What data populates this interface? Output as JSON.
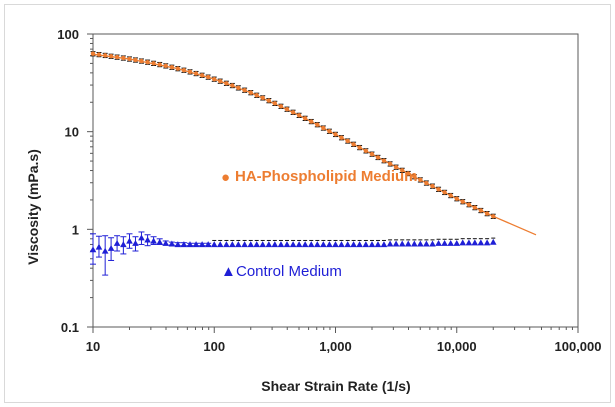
{
  "chart_data": {
    "type": "scatter",
    "xlabel": "Shear Strain Rate (1/s)",
    "ylabel": "Viscosity (mPa.s)",
    "x_scale": "log",
    "y_scale": "log",
    "xlim": [
      10,
      100000
    ],
    "ylim": [
      0.1,
      100
    ],
    "x_ticks": [
      "10",
      "100",
      "1,000",
      "10,000",
      "100,000"
    ],
    "y_ticks": [
      "100",
      "10",
      "1",
      "0.1"
    ],
    "grid": false,
    "colors": {
      "ha": "#ed7d31",
      "control": "#1f1fd6",
      "points": "#111111"
    },
    "series": [
      {
        "name": "HA-Phospholipid Medium",
        "marker": "circle",
        "color": "#ed7d31",
        "x": [
          10,
          11.2,
          12.6,
          14.1,
          15.8,
          17.8,
          20,
          22.4,
          25.1,
          28.2,
          31.6,
          35.5,
          39.8,
          44.7,
          50.1,
          56.2,
          63.1,
          70.8,
          79.4,
          89.1,
          100,
          112,
          126,
          141,
          158,
          178,
          200,
          224,
          251,
          282,
          316,
          355,
          398,
          447,
          501,
          562,
          631,
          708,
          794,
          891,
          1000,
          1120,
          1260,
          1410,
          1580,
          1780,
          2000,
          2240,
          2510,
          2820,
          3160,
          3550,
          3980,
          4470,
          5010,
          5620,
          6310,
          7080,
          7940,
          8910,
          10000,
          11200,
          12600,
          14100,
          15800,
          17800,
          20000
        ],
        "y": [
          62.8,
          61.6,
          60.4,
          59.2,
          58,
          56.8,
          55.5,
          54.2,
          52.9,
          51.5,
          50.1,
          48.7,
          47.2,
          45.7,
          44.2,
          42.6,
          41,
          39.4,
          37.8,
          36.2,
          34.5,
          32.9,
          31.3,
          29.7,
          28.1,
          26.6,
          25.1,
          23.6,
          22.2,
          20.8,
          19.5,
          18.2,
          17,
          15.8,
          14.7,
          13.7,
          12.7,
          11.8,
          10.9,
          10.1,
          9.38,
          8.68,
          8.03,
          7.43,
          6.88,
          6.37,
          5.89,
          5.45,
          5.05,
          4.68,
          4.33,
          4.02,
          3.73,
          3.46,
          3.21,
          2.98,
          2.77,
          2.57,
          2.39,
          2.22,
          2.06,
          1.92,
          1.79,
          1.67,
          1.56,
          1.45,
          1.36
        ],
        "error": 0.05,
        "fit": {
          "x": [
            10,
            20,
            50,
            100,
            200,
            500,
            1000,
            2000,
            5000,
            10000,
            20000,
            45000
          ],
          "y": [
            62,
            55.5,
            44.2,
            34.5,
            25.1,
            14.7,
            9.38,
            5.89,
            3.21,
            2.06,
            1.36,
            0.88
          ]
        }
      },
      {
        "name": "Control Medium",
        "marker": "triangle",
        "color": "#1f1fd6",
        "x": [
          10,
          11.2,
          12.6,
          14.1,
          15.8,
          17.8,
          20,
          22.4,
          25.1,
          28.2,
          31.6,
          35.5,
          39.8,
          44.7,
          50.1,
          56.2,
          63.1,
          70.8,
          79.4,
          89.1,
          100,
          112,
          126,
          141,
          158,
          178,
          200,
          224,
          251,
          282,
          316,
          355,
          398,
          447,
          501,
          562,
          631,
          708,
          794,
          891,
          1000,
          1120,
          1260,
          1410,
          1580,
          1780,
          2000,
          2240,
          2510,
          2820,
          3160,
          3550,
          3980,
          4470,
          5010,
          5620,
          6310,
          7080,
          7940,
          8910,
          10000,
          11200,
          12600,
          14100,
          15800,
          17800,
          20000
        ],
        "y": [
          0.62,
          0.66,
          0.6,
          0.64,
          0.72,
          0.7,
          0.76,
          0.72,
          0.82,
          0.78,
          0.76,
          0.74,
          0.72,
          0.71,
          0.7,
          0.7,
          0.7,
          0.7,
          0.7,
          0.7,
          0.7,
          0.7,
          0.7,
          0.7,
          0.7,
          0.7,
          0.7,
          0.7,
          0.7,
          0.7,
          0.7,
          0.7,
          0.7,
          0.7,
          0.7,
          0.7,
          0.7,
          0.7,
          0.7,
          0.7,
          0.7,
          0.7,
          0.7,
          0.7,
          0.7,
          0.7,
          0.7,
          0.7,
          0.7,
          0.71,
          0.71,
          0.71,
          0.71,
          0.71,
          0.71,
          0.71,
          0.71,
          0.72,
          0.72,
          0.72,
          0.72,
          0.73,
          0.73,
          0.73,
          0.73,
          0.73,
          0.74
        ],
        "err_low": [
          0.44,
          0.52,
          0.34,
          0.48,
          0.6,
          0.56,
          0.64,
          0.6,
          0.7,
          0.68,
          0.7,
          0.7,
          0.69,
          0.69,
          0.68,
          0.68,
          0.68,
          0.68,
          0.68,
          0.68
        ],
        "err_high": [
          0.9,
          0.85,
          0.86,
          0.82,
          0.86,
          0.84,
          0.9,
          0.84,
          0.94,
          0.88,
          0.84,
          0.8,
          0.76,
          0.74,
          0.73,
          0.73,
          0.72,
          0.72,
          0.72,
          0.72
        ]
      }
    ]
  },
  "annotations": {
    "ha_label": "HA-Phospholipid Medium",
    "control_label": "Control Medium",
    "ha_marker": "●",
    "control_marker": "▲"
  }
}
